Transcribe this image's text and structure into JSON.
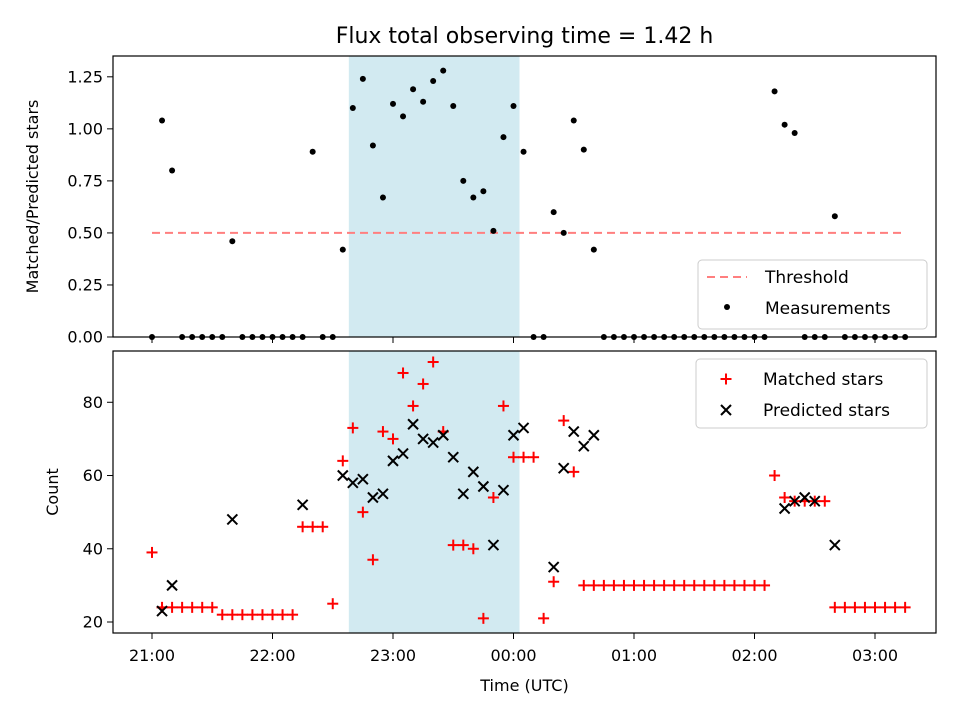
{
  "chart_data": {
    "type": "scatter",
    "title": "Flux total observing time = 1.42 h",
    "xlabel": "Time (UTC)",
    "x_tick_labels": [
      "21:00",
      "22:00",
      "23:00",
      "00:00",
      "01:00",
      "02:00",
      "03:00"
    ],
    "observing_window": {
      "start": "22:38",
      "end": "00:03",
      "color": "#add8e6"
    },
    "panels": [
      {
        "ylabel": "Matched/Predicted stars",
        "ylim": [
          0,
          1.35
        ],
        "y_ticks": [
          "0.00",
          "0.25",
          "0.50",
          "0.75",
          "1.00",
          "1.25"
        ],
        "legend": "lower-right",
        "series": [
          {
            "name": "Threshold",
            "style": "dashed-line",
            "color": "#ff7f7f",
            "x": [
              "21:00",
              "03:15"
            ],
            "y": [
              0.5,
              0.5
            ]
          },
          {
            "name": "Measurements",
            "style": "dot",
            "color": "#000000",
            "x": [
              "21:00",
              "21:05",
              "21:10",
              "21:15",
              "21:20",
              "21:25",
              "21:30",
              "21:35",
              "21:40",
              "21:45",
              "21:50",
              "21:55",
              "22:00",
              "22:05",
              "22:10",
              "22:15",
              "22:20",
              "22:25",
              "22:30",
              "22:35",
              "22:40",
              "22:45",
              "22:50",
              "22:55",
              "23:00",
              "23:05",
              "23:10",
              "23:15",
              "23:20",
              "23:25",
              "23:30",
              "23:35",
              "23:40",
              "23:45",
              "23:50",
              "23:55",
              "00:00",
              "00:05",
              "00:10",
              "00:15",
              "00:20",
              "00:25",
              "00:30",
              "00:35",
              "00:40",
              "00:45",
              "00:50",
              "00:55",
              "01:00",
              "01:05",
              "01:10",
              "01:15",
              "01:20",
              "01:25",
              "01:30",
              "01:35",
              "01:40",
              "01:45",
              "01:50",
              "01:55",
              "02:00",
              "02:05",
              "02:10",
              "02:15",
              "02:20",
              "02:25",
              "02:30",
              "02:35",
              "02:40",
              "02:45",
              "02:50",
              "02:55",
              "03:00",
              "03:05",
              "03:10",
              "03:15"
            ],
            "y": [
              0,
              1.04,
              0.8,
              0,
              0,
              0,
              0,
              0,
              0.46,
              0,
              0,
              0,
              0,
              0,
              0,
              0,
              0.89,
              0,
              0,
              0.42,
              1.1,
              1.24,
              0.92,
              0.67,
              1.12,
              1.06,
              1.19,
              1.13,
              1.23,
              1.28,
              1.11,
              0.75,
              0.67,
              0.7,
              0.51,
              0.96,
              1.11,
              0.89,
              0,
              0,
              0.6,
              0.5,
              1.04,
              0.9,
              0.42,
              0,
              0,
              0,
              0,
              0,
              0,
              0,
              0,
              0,
              0,
              0,
              0,
              0,
              0,
              0,
              0,
              0,
              1.18,
              1.02,
              0.98,
              0,
              0,
              0,
              0.58,
              0,
              0,
              0,
              0,
              0,
              0,
              0
            ]
          }
        ]
      },
      {
        "ylabel": "Count",
        "ylim": [
          17,
          94
        ],
        "y_ticks": [
          "20",
          "40",
          "60",
          "80"
        ],
        "legend": "top-right",
        "series": [
          {
            "name": "Matched stars",
            "style": "plus",
            "color": "#ff0000",
            "x": [
              "21:00",
              "21:05",
              "21:10",
              "21:15",
              "21:20",
              "21:25",
              "21:30",
              "21:35",
              "21:40",
              "21:45",
              "21:50",
              "21:55",
              "22:00",
              "22:05",
              "22:10",
              "22:15",
              "22:20",
              "22:25",
              "22:30",
              "22:35",
              "22:40",
              "22:45",
              "22:50",
              "22:55",
              "23:00",
              "23:05",
              "23:10",
              "23:15",
              "23:20",
              "23:25",
              "23:30",
              "23:35",
              "23:40",
              "23:45",
              "23:50",
              "23:55",
              "00:00",
              "00:05",
              "00:10",
              "00:15",
              "00:20",
              "00:25",
              "00:30",
              "00:35",
              "00:40",
              "00:45",
              "00:50",
              "00:55",
              "01:00",
              "01:05",
              "01:10",
              "01:15",
              "01:20",
              "01:25",
              "01:30",
              "01:35",
              "01:40",
              "01:45",
              "01:50",
              "01:55",
              "02:00",
              "02:05",
              "02:10",
              "02:15",
              "02:20",
              "02:25",
              "02:30",
              "02:35",
              "02:40",
              "02:45",
              "02:50",
              "02:55",
              "03:00",
              "03:05",
              "03:10",
              "03:15"
            ],
            "y": [
              39,
              24,
              24,
              24,
              24,
              24,
              24,
              22,
              22,
              22,
              22,
              22,
              22,
              22,
              22,
              46,
              46,
              46,
              25,
              64,
              73,
              50,
              37,
              72,
              70,
              88,
              79,
              85,
              91,
              72,
              41,
              41,
              40,
              21,
              54,
              79,
              65,
              65,
              65,
              21,
              31,
              75,
              61,
              30,
              30,
              30,
              30,
              30,
              30,
              30,
              30,
              30,
              30,
              30,
              30,
              30,
              30,
              30,
              30,
              30,
              30,
              30,
              60,
              54,
              53,
              53,
              53,
              53,
              24,
              24,
              24,
              24,
              24,
              24,
              24,
              24
            ]
          },
          {
            "name": "Predicted stars",
            "style": "x",
            "color": "#000000",
            "x": [
              "21:05",
              "21:10",
              "21:40",
              "22:15",
              "22:35",
              "22:40",
              "22:45",
              "22:50",
              "22:55",
              "23:00",
              "23:05",
              "23:10",
              "23:15",
              "23:20",
              "23:25",
              "23:30",
              "23:35",
              "23:40",
              "23:45",
              "23:50",
              "23:55",
              "00:00",
              "00:05",
              "00:20",
              "00:25",
              "00:30",
              "00:35",
              "00:40",
              "02:15",
              "02:20",
              "02:25",
              "02:30",
              "02:40"
            ],
            "y": [
              23,
              30,
              48,
              52,
              60,
              58,
              59,
              54,
              55,
              64,
              66,
              74,
              70,
              69,
              71,
              65,
              55,
              61,
              57,
              41,
              56,
              71,
              73,
              35,
              62,
              72,
              68,
              71,
              51,
              53,
              54,
              53,
              41
            ]
          }
        ]
      }
    ]
  }
}
